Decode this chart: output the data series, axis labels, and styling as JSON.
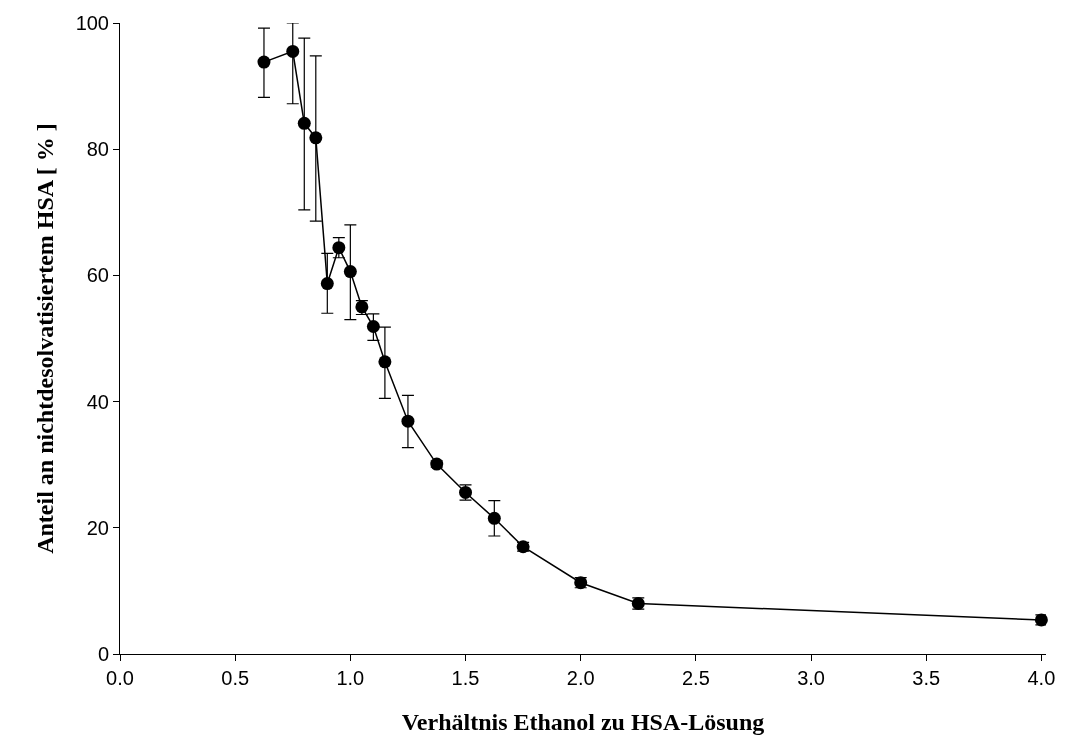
{
  "chart_data": {
    "type": "line",
    "xlabel": "Verhältnis Ethanol zu HSA-Lösung",
    "ylabel": "Anteil an nichtdesolvatisiertem HSA [ % ]",
    "x": [
      0.625,
      0.75,
      0.8,
      0.85,
      0.9,
      0.95,
      1.0,
      1.05,
      1.1,
      1.15,
      1.25,
      1.375,
      1.5,
      1.625,
      1.75,
      2.0,
      2.25,
      4.0
    ],
    "series": [
      {
        "color": "#000000",
        "values": [
          93.8,
          95.5,
          84.1,
          81.8,
          58.7,
          64.4,
          60.6,
          55.0,
          51.9,
          46.3,
          36.9,
          30.1,
          25.6,
          21.5,
          17.0,
          11.3,
          8.0,
          5.4
        ],
        "errors": [
          [
            88.2,
            99.2
          ],
          [
            87.2,
            100
          ],
          [
            70.4,
            97.6
          ],
          [
            68.6,
            94.8
          ],
          [
            54.0,
            63.5
          ],
          [
            62.8,
            66.0
          ],
          [
            53.0,
            68.0
          ],
          [
            53.8,
            56.0
          ],
          [
            49.7,
            53.9
          ],
          [
            40.5,
            51.8
          ],
          [
            32.7,
            41.0
          ],
          [
            29.6,
            30.6
          ],
          [
            24.4,
            26.8
          ],
          [
            18.7,
            24.3
          ],
          [
            16.3,
            17.7
          ],
          [
            10.5,
            12.1
          ],
          [
            7.1,
            8.9
          ],
          [
            4.6,
            6.2
          ]
        ]
      }
    ],
    "xlim": [
      0,
      4.02
    ],
    "xticks": [
      {
        "value": 0,
        "label": "0.0"
      },
      0.5,
      {
        "value": 1,
        "label": "1.0"
      },
      1.5,
      {
        "value": 2,
        "label": "2.0"
      },
      2.5,
      {
        "value": 3,
        "label": "3.0"
      },
      3.5,
      {
        "value": 4,
        "label": "4.0"
      }
    ],
    "ylim": [
      0,
      100
    ],
    "yticks": [
      0,
      20,
      40,
      60,
      80,
      100
    ],
    "marker": "circle",
    "line_style": "solid"
  }
}
